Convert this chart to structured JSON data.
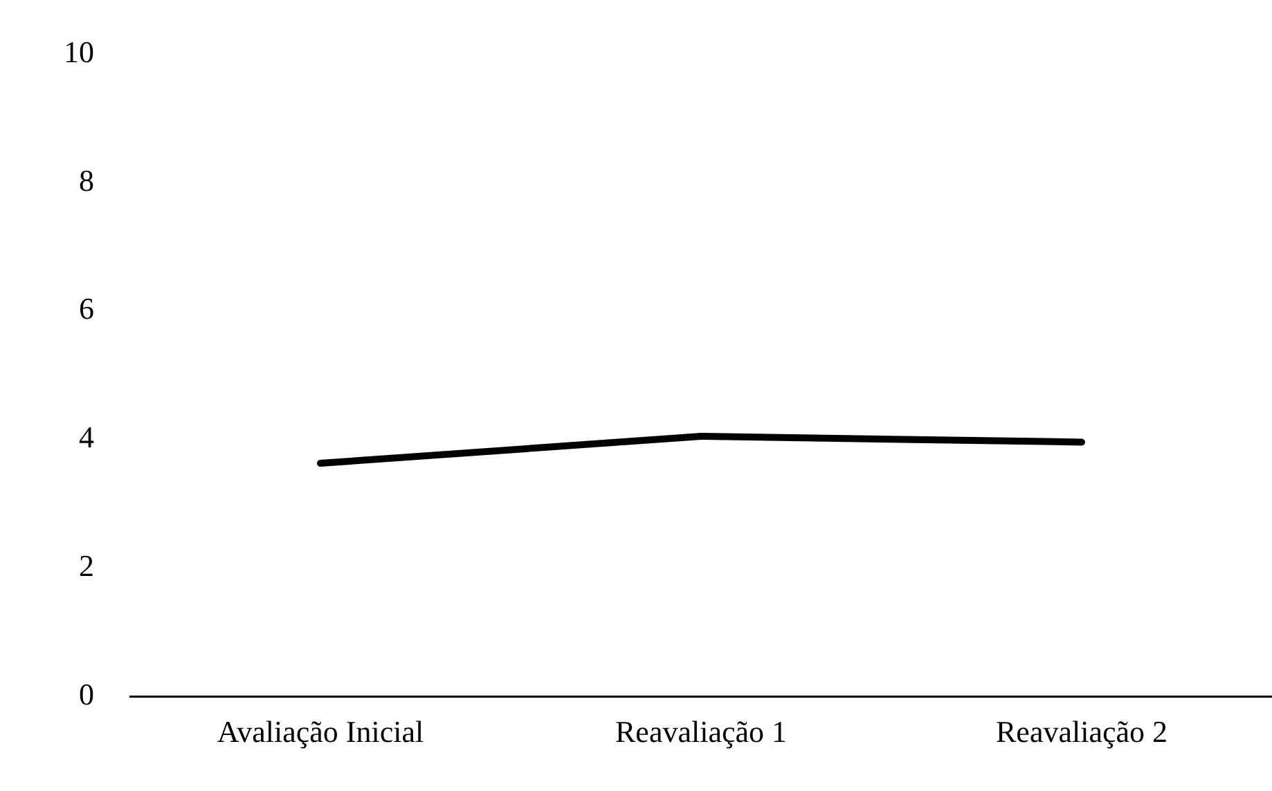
{
  "chart_data": {
    "type": "line",
    "categories": [
      "Avaliação Inicial",
      "Reavaliação 1",
      "Reavaliação 2"
    ],
    "series": [
      {
        "color": "#000000",
        "values": [
          3.63,
          4.05,
          3.96
        ]
      }
    ],
    "ylim": [
      0,
      10
    ],
    "yticks": [
      0,
      2,
      4,
      6,
      8,
      10
    ],
    "grid": false,
    "legend": false,
    "marker": "none",
    "line_style": "solid"
  }
}
